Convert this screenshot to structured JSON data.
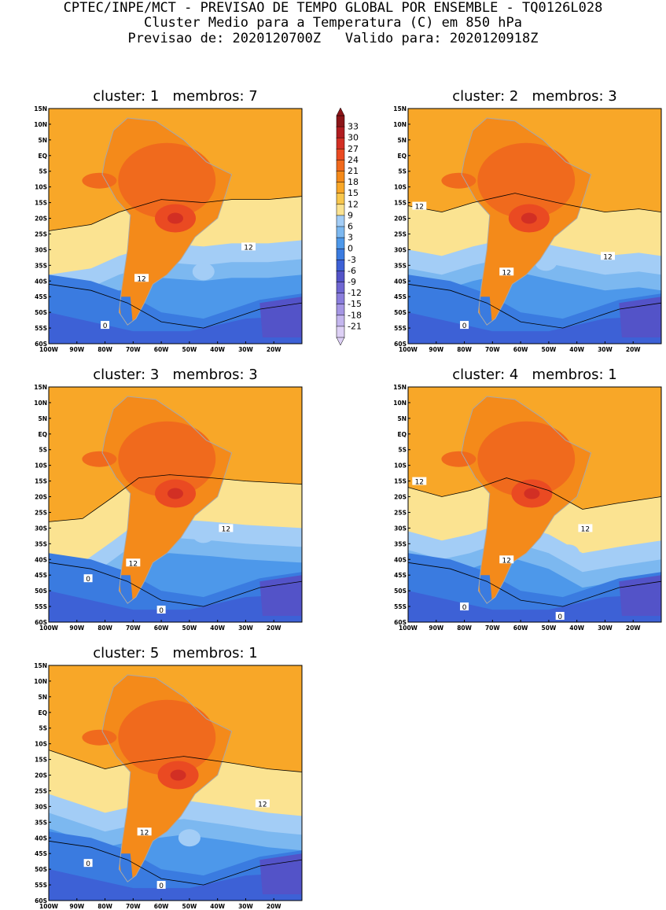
{
  "header": {
    "line1": "CPTEC/INPE/MCT - PREVISAO DE TEMPO GLOBAL POR ENSEMBLE - TQ0126L028",
    "line2": "Cluster Medio para a Temperatura (C) em 850 hPa",
    "line3": "Previsao de: 2020120700Z   Valido para: 2020120918Z"
  },
  "colors": {
    "levels": [
      "#ddd0f5",
      "#c4b6ee",
      "#a596e4",
      "#8a7ddc",
      "#6f66d2",
      "#5353c8",
      "#3d61d6",
      "#3a7be0",
      "#4d98ea",
      "#7cb8f0",
      "#a3cdf6",
      "#fbe391",
      "#f8c74d",
      "#f8a728",
      "#f48a1a",
      "#f06a1d",
      "#ea4a22",
      "#d22f24",
      "#b01c20",
      "#8c1518"
    ],
    "ocean_base": "#f8a728",
    "contour": "#000000",
    "coast": "#a8a8a8"
  },
  "chart_data": [
    {
      "type": "contour_map",
      "title": "cluster: 1   membros: 7",
      "variable": "Temperatura 850 hPa (C)",
      "xlim": [
        -100,
        -10
      ],
      "ylim": [
        -60,
        15
      ],
      "x_ticks": [
        "100W",
        "90W",
        "80W",
        "70W",
        "60W",
        "50W",
        "40W",
        "30W",
        "20W"
      ],
      "y_ticks": [
        "15N",
        "10N",
        "5N",
        "EQ",
        "5S",
        "10S",
        "15S",
        "20S",
        "25S",
        "30S",
        "35S",
        "40S",
        "45S",
        "50S",
        "55S",
        "60S"
      ],
      "max_region": {
        "lon": -55,
        "lat": -20,
        "value": 24
      },
      "cold_patch": {
        "lon": -45,
        "lat": -37,
        "value": 6
      },
      "contour_labels": [
        {
          "text": "12",
          "lon": -29,
          "lat": -29
        },
        {
          "text": "12",
          "lon": -67,
          "lat": -39
        },
        {
          "text": "0",
          "lon": -80,
          "lat": -54
        }
      ],
      "contour_12": [
        [
          -100,
          -24
        ],
        [
          -85,
          -22
        ],
        [
          -75,
          -18
        ],
        [
          -60,
          -14
        ],
        [
          -45,
          -15
        ],
        [
          -35,
          -14
        ],
        [
          -22,
          -14
        ],
        [
          -10,
          -13
        ]
      ]
    },
    {
      "type": "contour_map",
      "title": "cluster: 2   membros: 3",
      "variable": "Temperatura 850 hPa (C)",
      "xlim": [
        -100,
        -10
      ],
      "ylim": [
        -60,
        15
      ],
      "x_ticks": [
        "100W",
        "90W",
        "80W",
        "70W",
        "60W",
        "50W",
        "40W",
        "30W",
        "20W"
      ],
      "y_ticks": [
        "15N",
        "10N",
        "5N",
        "EQ",
        "5S",
        "10S",
        "15S",
        "20S",
        "25S",
        "30S",
        "35S",
        "40S",
        "45S",
        "50S",
        "55S",
        "60S"
      ],
      "max_region": {
        "lon": -57,
        "lat": -20,
        "value": 24
      },
      "cold_patch": {
        "lon": -51,
        "lat": -34,
        "value": 6
      },
      "contour_labels": [
        {
          "text": "12",
          "lon": -96,
          "lat": -16
        },
        {
          "text": "12",
          "lon": -29,
          "lat": -32
        },
        {
          "text": "12",
          "lon": -65,
          "lat": -37
        },
        {
          "text": "0",
          "lon": -80,
          "lat": -54
        }
      ],
      "contour_12": [
        [
          -100,
          -16
        ],
        [
          -88,
          -18
        ],
        [
          -77,
          -15
        ],
        [
          -62,
          -12
        ],
        [
          -47,
          -15
        ],
        [
          -30,
          -18
        ],
        [
          -18,
          -17
        ],
        [
          -10,
          -18
        ]
      ]
    },
    {
      "type": "contour_map",
      "title": "cluster: 3   membros: 3",
      "variable": "Temperatura 850 hPa (C)",
      "xlim": [
        -100,
        -10
      ],
      "ylim": [
        -60,
        15
      ],
      "x_ticks": [
        "100W",
        "90W",
        "80W",
        "70W",
        "60W",
        "50W",
        "40W",
        "30W",
        "20W"
      ],
      "y_ticks": [
        "15N",
        "10N",
        "5N",
        "EQ",
        "5S",
        "10S",
        "15S",
        "20S",
        "25S",
        "30S",
        "35S",
        "40S",
        "45S",
        "50S",
        "55S",
        "60S"
      ],
      "max_region": {
        "lon": -55,
        "lat": -19,
        "value": 24
      },
      "cold_patch": {
        "lon": -45,
        "lat": -32,
        "value": 6
      },
      "contour_labels": [
        {
          "text": "12",
          "lon": -37,
          "lat": -30
        },
        {
          "text": "12",
          "lon": -70,
          "lat": -41
        },
        {
          "text": "0",
          "lon": -86,
          "lat": -46
        },
        {
          "text": "0",
          "lon": -60,
          "lat": -56
        }
      ],
      "contour_12": [
        [
          -100,
          -28
        ],
        [
          -88,
          -27
        ],
        [
          -77,
          -20
        ],
        [
          -68,
          -14
        ],
        [
          -57,
          -13
        ],
        [
          -42,
          -14
        ],
        [
          -30,
          -15
        ],
        [
          -10,
          -16
        ]
      ]
    },
    {
      "type": "contour_map",
      "title": "cluster: 4   membros: 1",
      "variable": "Temperatura 850 hPa (C)",
      "xlim": [
        -100,
        -10
      ],
      "ylim": [
        -60,
        15
      ],
      "x_ticks": [
        "100W",
        "90W",
        "80W",
        "70W",
        "60W",
        "50W",
        "40W",
        "30W",
        "20W"
      ],
      "y_ticks": [
        "15N",
        "10N",
        "5N",
        "EQ",
        "5S",
        "10S",
        "15S",
        "20S",
        "25S",
        "30S",
        "35S",
        "40S",
        "45S",
        "50S",
        "55S",
        "60S"
      ],
      "max_region": {
        "lon": -56,
        "lat": -19,
        "value": 24
      },
      "cold_patch": {
        "lon": -43,
        "lat": -38,
        "value": 6
      },
      "contour_labels": [
        {
          "text": "12",
          "lon": -96,
          "lat": -15
        },
        {
          "text": "12",
          "lon": -37,
          "lat": -30
        },
        {
          "text": "12",
          "lon": -65,
          "lat": -40
        },
        {
          "text": "0",
          "lon": -80,
          "lat": -55
        },
        {
          "text": "0",
          "lon": -46,
          "lat": -58
        }
      ],
      "contour_12": [
        [
          -100,
          -17
        ],
        [
          -88,
          -20
        ],
        [
          -78,
          -18
        ],
        [
          -65,
          -14
        ],
        [
          -50,
          -18
        ],
        [
          -38,
          -24
        ],
        [
          -25,
          -22
        ],
        [
          -10,
          -20
        ]
      ]
    },
    {
      "type": "contour_map",
      "title": "cluster: 5   membros: 1",
      "variable": "Temperatura 850 hPa (C)",
      "xlim": [
        -100,
        -10
      ],
      "ylim": [
        -60,
        15
      ],
      "x_ticks": [
        "100W",
        "90W",
        "80W",
        "70W",
        "60W",
        "50W",
        "40W",
        "30W",
        "20W"
      ],
      "y_ticks": [
        "15N",
        "10N",
        "5N",
        "EQ",
        "5S",
        "10S",
        "15S",
        "20S",
        "25S",
        "30S",
        "35S",
        "40S",
        "45S",
        "50S",
        "55S",
        "60S"
      ],
      "max_region": {
        "lon": -54,
        "lat": -20,
        "value": 24
      },
      "cold_patch": {
        "lon": -50,
        "lat": -40,
        "value": 6
      },
      "contour_labels": [
        {
          "text": "12",
          "lon": -24,
          "lat": -29
        },
        {
          "text": "12",
          "lon": -66,
          "lat": -38
        },
        {
          "text": "0",
          "lon": -86,
          "lat": -48
        },
        {
          "text": "0",
          "lon": -60,
          "lat": -55
        }
      ],
      "contour_12": [
        [
          -100,
          -12
        ],
        [
          -90,
          -15
        ],
        [
          -80,
          -18
        ],
        [
          -70,
          -16
        ],
        [
          -52,
          -14
        ],
        [
          -36,
          -16
        ],
        [
          -22,
          -18
        ],
        [
          -10,
          -19
        ]
      ]
    }
  ],
  "colorbar": {
    "labels": [
      "33",
      "30",
      "27",
      "24",
      "21",
      "18",
      "15",
      "12",
      "9",
      "6",
      "3",
      "0",
      "-3",
      "-6",
      "-9",
      "-12",
      "-15",
      "-18",
      "-21"
    ]
  }
}
